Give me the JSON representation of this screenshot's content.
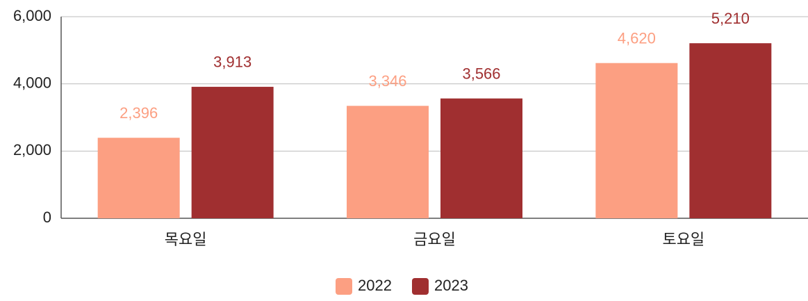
{
  "chart_data": {
    "type": "bar",
    "categories": [
      "목요일",
      "금요일",
      "토요일"
    ],
    "series": [
      {
        "name": "2022",
        "color": "#fc9f82",
        "values": [
          2396,
          3346,
          4620
        ],
        "value_labels": [
          "2,396",
          "3,346",
          "4,620"
        ]
      },
      {
        "name": "2023",
        "color": "#a02f30",
        "values": [
          3913,
          3566,
          5210
        ],
        "value_labels": [
          "3,913",
          "3,566",
          "5,210"
        ]
      }
    ],
    "ylim": [
      0,
      6000
    ],
    "yticks": [
      0,
      {
        "value": 2000,
        "label": "2,000"
      },
      {
        "value": 4000,
        "label": "4,000"
      },
      {
        "value": 6000,
        "label": "6,000"
      }
    ],
    "grid": true,
    "legend": "bottom"
  }
}
